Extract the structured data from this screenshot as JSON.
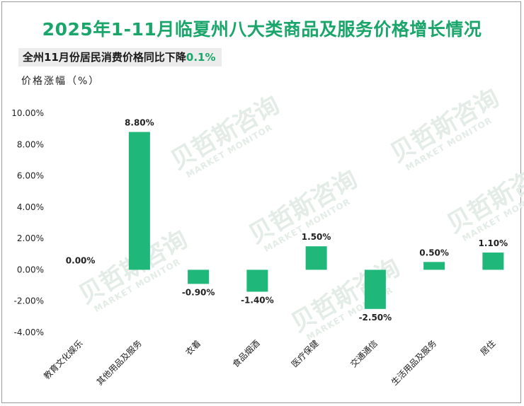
{
  "header": {
    "title": "2025年1-11月临夏州八大类商品及服务价格增长情况",
    "subtitle_prefix": "全州11月份居民消费价格同比下降",
    "subtitle_value": "0.1%",
    "accent_color": "#1aa56a"
  },
  "watermark": {
    "text": "贝哲斯咨询",
    "subtext": "MARKET MONITOR"
  },
  "chart_data": {
    "type": "bar",
    "ylabel": "价格涨幅（%）",
    "ylim": [
      -4,
      10
    ],
    "yticks": [
      10,
      8,
      6,
      4,
      2,
      0,
      -2,
      -4
    ],
    "ytick_labels": [
      "10.00%",
      "8.00%",
      "6.00%",
      "4.00%",
      "2.00%",
      "0.00%",
      "-2.00%",
      "-4.00%"
    ],
    "categories": [
      "教育文化娱乐",
      "其他用品及服务",
      "衣着",
      "食品烟酒",
      "医疗保健",
      "交通通信",
      "生活用品及服务",
      "居住"
    ],
    "values": [
      0.0,
      8.8,
      -0.9,
      -1.4,
      1.5,
      -2.5,
      0.5,
      1.1
    ],
    "value_labels": [
      "0.00%",
      "8.80%",
      "-0.90%",
      "-1.40%",
      "1.50%",
      "-2.50%",
      "0.50%",
      "1.10%"
    ],
    "bar_color": "#1fb77a",
    "grid": false,
    "legend": "none"
  }
}
